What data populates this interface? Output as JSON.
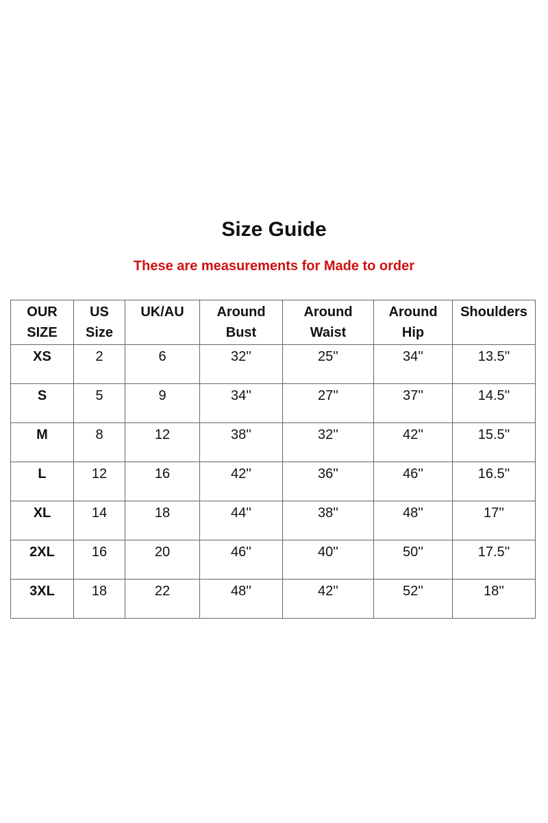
{
  "title": "Size Guide",
  "subtitle": "These are measurements for Made to order",
  "accent_color": "#d01010",
  "table": {
    "headers": [
      [
        "OUR",
        "SIZE"
      ],
      [
        "US",
        "Size"
      ],
      [
        "UK/AU",
        ""
      ],
      [
        "Around",
        "Bust"
      ],
      [
        "Around",
        "Waist"
      ],
      [
        "Around",
        "Hip"
      ],
      [
        "Shoulders",
        ""
      ]
    ],
    "rows": [
      [
        "XS",
        "2",
        "6",
        "32''",
        "25''",
        "34''",
        "13.5''"
      ],
      [
        "S",
        "5",
        "9",
        "34''",
        "27''",
        "37''",
        "14.5''"
      ],
      [
        "M",
        "8",
        "12",
        "38''",
        "32''",
        "42''",
        "15.5''"
      ],
      [
        "L",
        "12",
        "16",
        "42''",
        "36''",
        "46''",
        "16.5''"
      ],
      [
        "XL",
        "14",
        "18",
        "44''",
        "38''",
        "48''",
        "17''"
      ],
      [
        "2XL",
        "16",
        "20",
        "46''",
        "40''",
        "50''",
        "17.5''"
      ],
      [
        "3XL",
        "18",
        "22",
        "48''",
        "42''",
        "52''",
        "18''"
      ]
    ]
  }
}
